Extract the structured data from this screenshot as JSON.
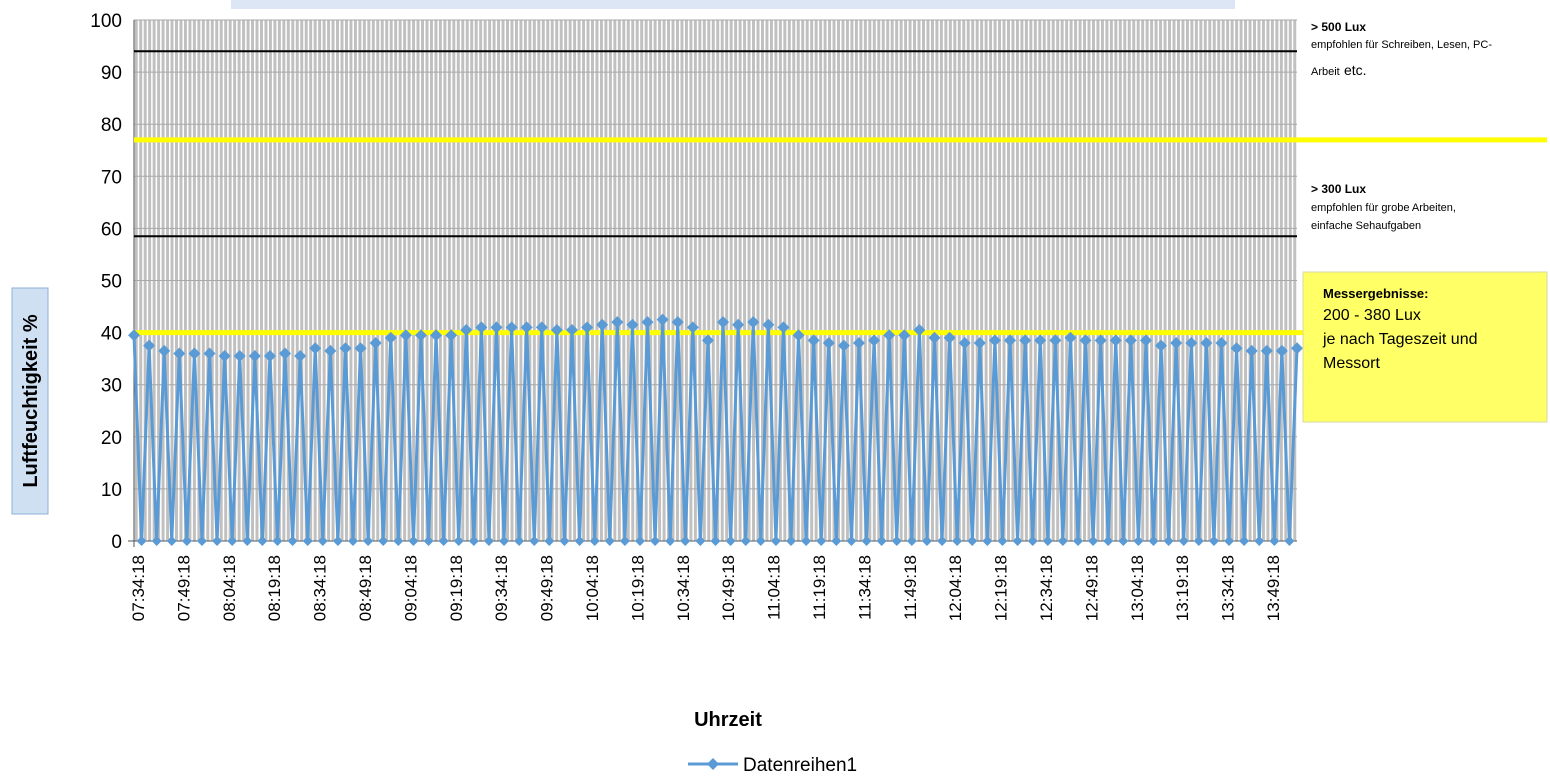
{
  "chart_data": {
    "type": "line",
    "title": "",
    "xlabel": "Uhrzeit",
    "ylabel": "Luftfeuchtigkeit %",
    "ylim": [
      0,
      100
    ],
    "yticks": [
      0,
      10,
      20,
      30,
      40,
      50,
      60,
      70,
      80,
      90,
      100
    ],
    "x_tick_labels": [
      "07:34:18",
      "07:49:18",
      "08:04:18",
      "08:19:18",
      "08:34:18",
      "08:49:18",
      "09:04:18",
      "09:19:18",
      "09:34:18",
      "09:49:18",
      "10:04:18",
      "10:19:18",
      "10:34:18",
      "10:49:18",
      "11:04:18",
      "11:19:18",
      "11:34:18",
      "11:49:18",
      "12:04:18",
      "12:19:18",
      "12:34:18",
      "12:49:18",
      "13:04:18",
      "13:19:18",
      "13:34:18",
      "13:49:18"
    ],
    "sample_interval_minutes": 5,
    "series": [
      {
        "name": "Datenreihen1",
        "color": "#5b9bd5",
        "values": [
          39.5,
          37.5,
          36.5,
          36,
          36,
          36,
          35.5,
          35.5,
          35.5,
          35.5,
          36,
          35.5,
          37,
          36.5,
          37,
          37,
          38,
          39,
          39.5,
          39.5,
          39.5,
          39.5,
          40.5,
          41,
          41,
          41,
          41,
          41,
          40.5,
          40.5,
          41,
          41.5,
          42,
          41.5,
          42,
          42.5,
          42,
          41,
          38.5,
          42,
          41.5,
          42,
          41.5,
          41,
          39.5,
          38.5,
          38,
          37.5,
          38,
          38.5,
          39.5,
          39.5,
          40.5,
          39,
          39,
          38,
          38,
          38.5,
          38.5,
          38.5,
          38.5,
          38.5,
          39,
          38.5,
          38.5,
          38.5,
          38.5,
          38.5,
          37.5,
          38,
          38,
          38,
          38,
          37,
          36.5,
          36.5,
          36.5,
          37
        ]
      }
    ],
    "reference_lines": [
      {
        "value": 94,
        "color": "#000000"
      },
      {
        "value": 77,
        "color": "#ffff00"
      },
      {
        "value": 58.5,
        "color": "#000000"
      },
      {
        "value": 40,
        "color": "#ffff00"
      }
    ],
    "annotations": {
      "lux500": {
        "head": "> 500 Lux",
        "line1": "empfohlen für Schreiben, Lesen, PC-",
        "line2": "Arbeit",
        "etc": "etc."
      },
      "lux300": {
        "head": "> 300 Lux",
        "line1": "empfohlen für grobe Arbeiten,",
        "line2": "einfache Sehaufgaben"
      },
      "messung": {
        "head": "Messergebnisse:",
        "line1": "200 - 380 Lux",
        "line2": "je nach Tageszeit und",
        "line3": "Messort",
        "bg": "#ffff66"
      }
    },
    "plot_background": "#c0c0c0",
    "grid": true,
    "legend_position": "bottom"
  }
}
